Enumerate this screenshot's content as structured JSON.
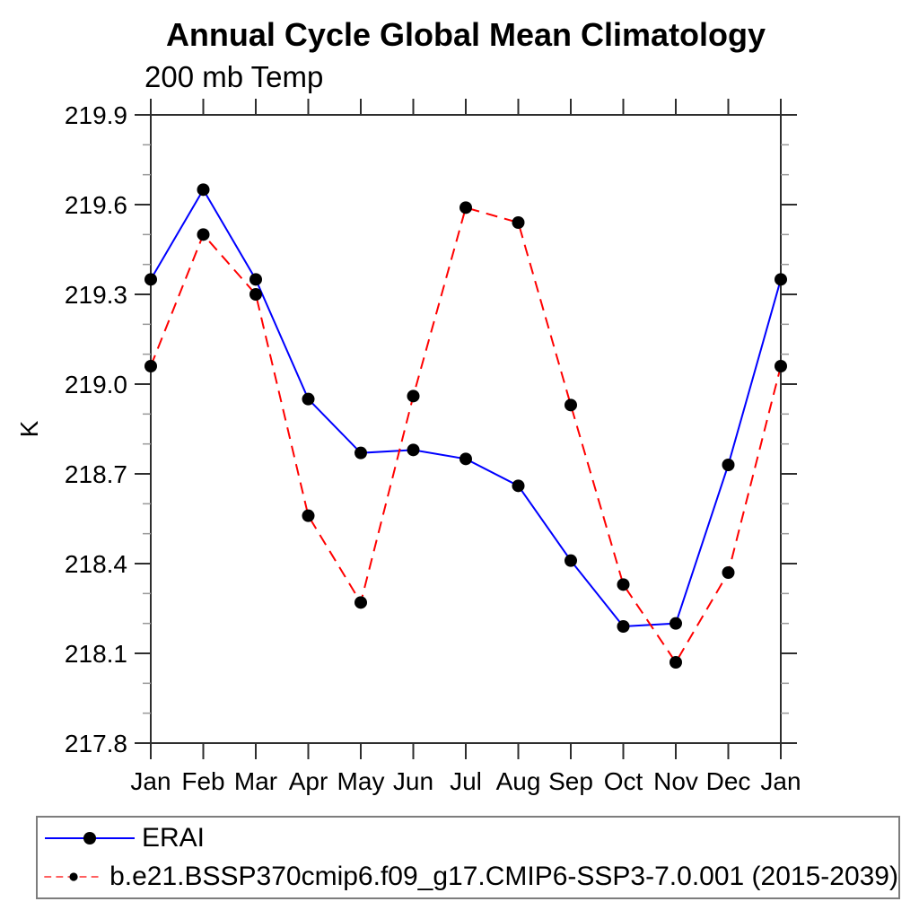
{
  "chart_data": {
    "type": "line",
    "title": "Annual Cycle Global Mean Climatology",
    "subtitle": "200 mb Temp",
    "ylabel": "K",
    "xlabel": "",
    "categories": [
      "Jan",
      "Feb",
      "Mar",
      "Apr",
      "May",
      "Jun",
      "Jul",
      "Aug",
      "Sep",
      "Oct",
      "Nov",
      "Dec",
      "Jan"
    ],
    "ylim": [
      217.8,
      219.9
    ],
    "y_major_ticks": [
      217.8,
      218.1,
      218.4,
      218.7,
      219.0,
      219.3,
      219.6,
      219.9
    ],
    "y_minor_step": 0.1,
    "grid": false,
    "legend_position": "bottom",
    "marker": {
      "shape": "circle",
      "color": "#000000",
      "radius": 7
    },
    "series": [
      {
        "name": "ERAI",
        "color": "#0000ff",
        "line_style": "solid",
        "values": [
          219.35,
          219.65,
          219.35,
          218.95,
          218.77,
          218.78,
          218.75,
          218.66,
          218.41,
          218.19,
          218.2,
          218.73,
          219.35
        ]
      },
      {
        "name": "b.e21.BSSP370cmip6.f09_g17.CMIP6-SSP3-7.0.001 (2015-2039)",
        "color": "#ff0000",
        "line_style": "dashed",
        "values": [
          219.06,
          219.5,
          219.3,
          218.56,
          218.27,
          218.96,
          219.59,
          219.54,
          218.93,
          218.33,
          218.07,
          218.37,
          219.06
        ]
      }
    ]
  }
}
